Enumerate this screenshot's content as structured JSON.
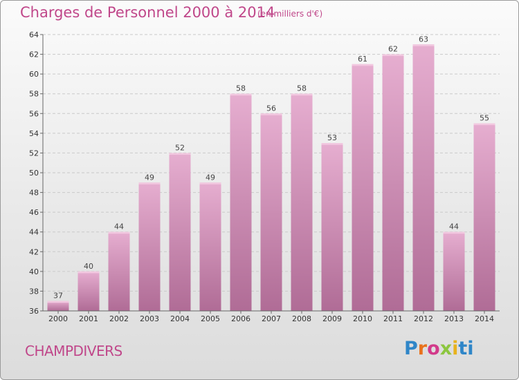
{
  "title": "Charges de Personnel 2000 à 2014",
  "units_note": "(en milliers d'€)",
  "commune": "CHAMPDIVERS",
  "logo": {
    "text": "Proxiti",
    "letters": [
      "P",
      "r",
      "o",
      "x",
      "i",
      "ti"
    ]
  },
  "colors": {
    "accent": "#c0478a",
    "bar_top": "#e3a7cb",
    "bar_bottom": "#b06c96"
  },
  "chart_data": {
    "type": "bar",
    "categories": [
      "2000",
      "2001",
      "2002",
      "2003",
      "2004",
      "2005",
      "2006",
      "2007",
      "2008",
      "2009",
      "2010",
      "2011",
      "2012",
      "2013",
      "2014"
    ],
    "values": [
      37,
      40,
      44,
      49,
      52,
      49,
      58,
      56,
      58,
      53,
      61,
      62,
      63,
      44,
      55
    ],
    "title": "Charges de Personnel 2000 à 2014",
    "subtitle": "(en milliers d'€)",
    "xlabel": "",
    "ylabel": "",
    "ylim": [
      36,
      64
    ],
    "yticks": [
      36,
      38,
      40,
      42,
      44,
      46,
      48,
      50,
      52,
      54,
      56,
      58,
      60,
      62,
      64
    ],
    "grid": true,
    "data_labels": true
  }
}
